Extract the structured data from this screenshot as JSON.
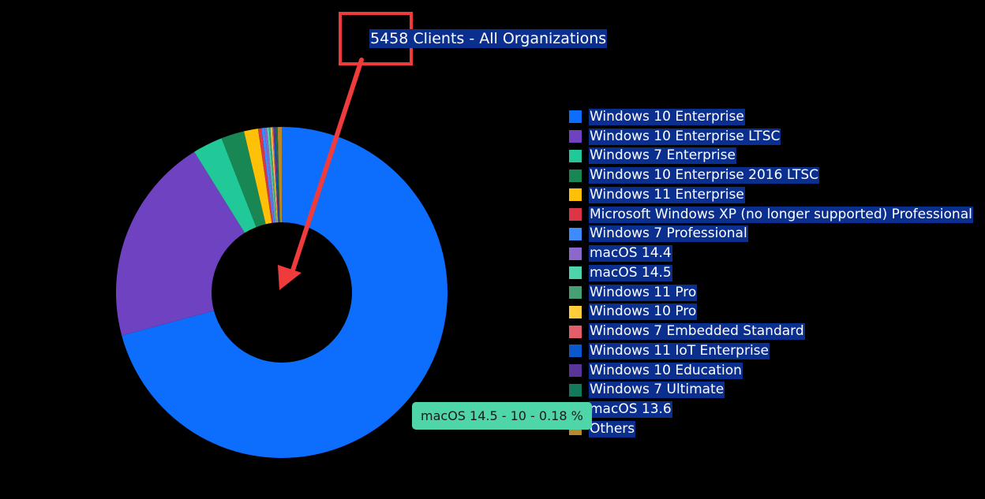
{
  "title": "5458 Clients - All Organizations",
  "tooltip": {
    "text": "macOS 14.5 - 10 - 0.18 %",
    "color": "#4fd6a8"
  },
  "annotation_color": "#ef3b3b",
  "chart_data": {
    "type": "pie",
    "donut": true,
    "title": "5458 Clients - All Organizations",
    "legend_position": "right",
    "series": [
      {
        "name": "Windows 10 Enterprise",
        "value": 3865,
        "color": "#0d6efd"
      },
      {
        "name": "Windows 10 Enterprise LTSC",
        "value": 1110,
        "color": "#6f42c1"
      },
      {
        "name": "Windows 7 Enterprise",
        "value": 160,
        "color": "#20c997"
      },
      {
        "name": "Windows 10 Enterprise 2016 LTSC",
        "value": 123,
        "color": "#198754"
      },
      {
        "name": "Windows 11 Enterprise",
        "value": 75,
        "color": "#ffc107"
      },
      {
        "name": "Microsoft Windows XP (no longer supported) Professional",
        "value": 18,
        "color": "#dc3545"
      },
      {
        "name": "Windows 7 Professional",
        "value": 16,
        "color": "#3d8bfd"
      },
      {
        "name": "macOS 14.4",
        "value": 13,
        "color": "#8c68cd"
      },
      {
        "name": "macOS 14.5",
        "value": 10,
        "color": "#4dd4ac"
      },
      {
        "name": "Windows 11 Pro",
        "value": 9,
        "color": "#479f76"
      },
      {
        "name": "Windows 10 Pro",
        "value": 8,
        "color": "#ffcd39"
      },
      {
        "name": "Windows 7 Embedded Standard",
        "value": 7,
        "color": "#e35d6a"
      },
      {
        "name": "Windows 11 IoT Enterprise",
        "value": 6,
        "color": "#0a58ca"
      },
      {
        "name": "Windows 10 Education",
        "value": 6,
        "color": "#59359a"
      },
      {
        "name": "Windows 7 Ultimate",
        "value": 5,
        "color": "#13795b"
      },
      {
        "name": "macOS 13.6",
        "value": 5,
        "color": "#146c43"
      },
      {
        "name": "Others",
        "value": 22,
        "color": "#b8892a"
      }
    ]
  }
}
